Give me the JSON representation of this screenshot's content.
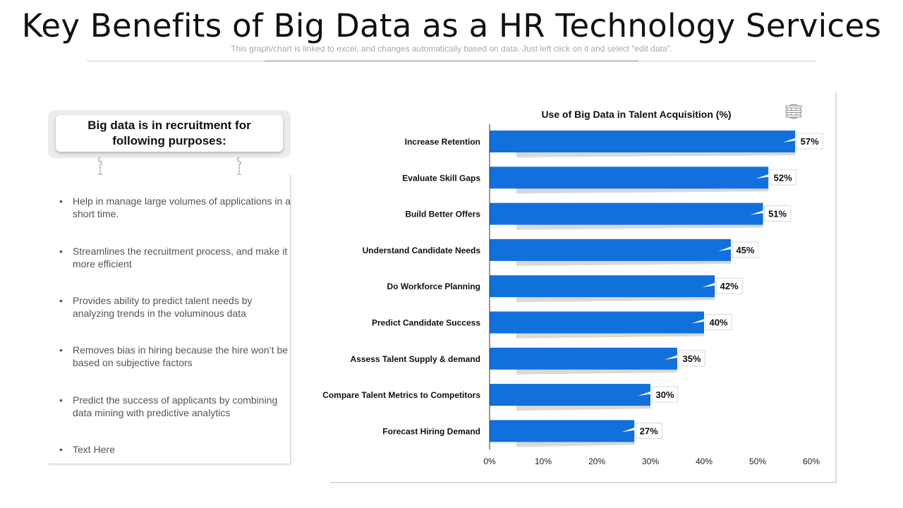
{
  "header": {
    "title": "Key Benefits of Big Data as a HR Technology Services",
    "subtitle": "This graph/chart is linked to excel, and changes automatically based on data. Just left click on it and select “edit data”."
  },
  "left_panel": {
    "heading": "Big data is in recruitment for following purposes:",
    "items": [
      "Help in manage large volumes of applications in a short time.",
      "Streamlines the recruitment process, and make it more efficient",
      "Provides ability to predict talent needs by analyzing trends in the voluminous data",
      "Removes bias in hiring because the hire won’t be based on subjective factors",
      "Predict the success of applicants by combining data mining with predictive analytics",
      "Text Here"
    ]
  },
  "chart_data": {
    "type": "bar",
    "orientation": "horizontal",
    "title": "Use of Big Data in Talent Acquisition (%)",
    "xlabel": "",
    "ylabel": "",
    "categories": [
      "Increase Retention",
      "Evaluate Skill Gaps",
      "Build Better Offers",
      "Understand Candidate Needs",
      "Do Workforce Planning",
      "Predict Candidate Success",
      "Assess Talent Supply & demand",
      "Compare Talent Metrics to Competitors",
      "Forecast Hiring Demand"
    ],
    "values": [
      57,
      52,
      51,
      45,
      42,
      40,
      35,
      30,
      27
    ],
    "data_labels": [
      "57%",
      "52%",
      "51%",
      "45%",
      "42%",
      "40%",
      "35%",
      "30%",
      "27%"
    ],
    "xlim": [
      0,
      60
    ],
    "xticks": [
      0,
      10,
      20,
      30,
      40,
      50,
      60
    ],
    "xtick_labels": [
      "0%",
      "10%",
      "20%",
      "30%",
      "40%",
      "50%",
      "60%"
    ],
    "grid": false,
    "legend": "none",
    "bar_color": "#1170DB"
  },
  "icons": {
    "chart_corner": "globe-database-icon",
    "hooks": "chain-hook-icon"
  }
}
